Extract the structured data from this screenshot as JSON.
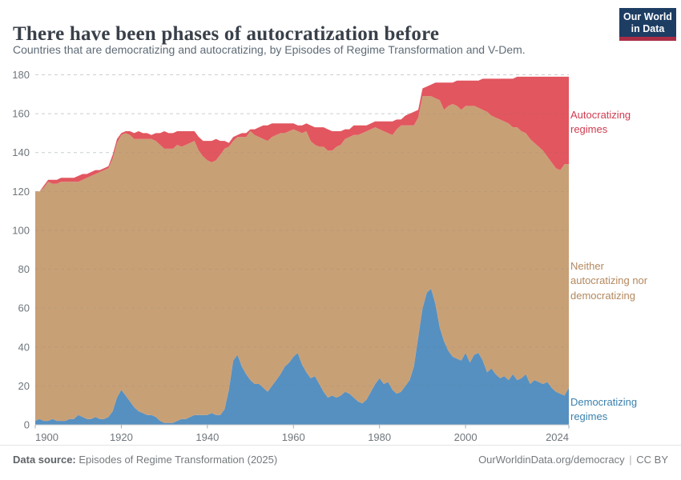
{
  "header": {
    "title": "There have been phases of autocratization before",
    "subtitle": "Countries that are democratizing and autocratizing, by Episodes of Regime Transformation and V-Dem.",
    "logo": {
      "line1": "Our World",
      "line2": "in Data",
      "bg_color": "#1d3d63",
      "bar_color": "#aa2d46"
    }
  },
  "chart_data": {
    "type": "area",
    "stacked": true,
    "title": "There have been phases of autocratization before",
    "xlabel": "",
    "ylabel": "",
    "ylim": [
      0,
      180
    ],
    "y_ticks": [
      0,
      20,
      40,
      60,
      80,
      100,
      120,
      140,
      160,
      180
    ],
    "x_ticks": [
      1900,
      1920,
      1940,
      1960,
      1980,
      2000,
      2024
    ],
    "grid": "horizontal-dashed",
    "legend_position": "right-edge-annotations",
    "years": {
      "start": 1900,
      "end": 2024,
      "step": 1
    },
    "series": [
      {
        "name": "Democratizing regimes",
        "color": "#5590c1",
        "values": [
          2,
          3,
          2,
          2,
          3,
          2,
          2,
          2,
          3,
          3,
          5,
          4,
          3,
          3,
          4,
          3,
          3,
          4,
          7,
          14,
          18,
          15,
          12,
          9,
          7,
          6,
          5,
          5,
          4,
          2,
          1,
          1,
          1,
          2,
          3,
          3,
          4,
          5,
          5,
          5,
          5,
          6,
          5,
          5,
          8,
          18,
          33,
          36,
          30,
          26,
          23,
          21,
          21,
          19,
          17,
          20,
          23,
          26,
          30,
          32,
          35,
          37,
          31,
          27,
          24,
          25,
          21,
          17,
          14,
          15,
          14,
          15,
          17,
          16,
          14,
          12,
          11,
          13,
          17,
          21,
          24,
          21,
          22,
          18,
          16,
          17,
          20,
          23,
          30,
          45,
          60,
          68,
          70,
          62,
          50,
          43,
          38,
          35,
          34,
          33,
          37,
          32,
          36,
          37,
          33,
          27,
          29,
          26,
          24,
          25,
          23,
          26,
          23,
          24,
          26,
          21,
          23,
          22,
          21,
          22,
          19,
          17,
          16,
          15,
          19
        ]
      },
      {
        "name": "Neither autocratizing nor democratizing",
        "color": "#c8a076",
        "values": [
          118,
          117,
          120,
          123,
          121,
          122,
          123,
          123,
          122,
          122,
          120,
          122,
          124,
          125,
          125,
          127,
          128,
          128,
          130,
          131,
          131,
          135,
          137,
          138,
          140,
          141,
          142,
          142,
          142,
          142,
          141,
          141,
          141,
          142,
          140,
          141,
          141,
          141,
          136,
          133,
          131,
          129,
          131,
          134,
          134,
          125,
          113,
          112,
          118,
          122,
          128,
          128,
          127,
          128,
          129,
          128,
          126,
          124,
          120,
          119,
          117,
          114,
          119,
          124,
          122,
          119,
          122,
          126,
          127,
          126,
          129,
          129,
          130,
          132,
          135,
          137,
          139,
          138,
          135,
          132,
          128,
          130,
          128,
          131,
          136,
          137,
          134,
          131,
          124,
          113,
          109,
          101,
          99,
          106,
          117,
          119,
          126,
          130,
          130,
          129,
          127,
          132,
          128,
          126,
          129,
          134,
          130,
          132,
          133,
          131,
          132,
          127,
          130,
          127,
          124,
          126,
          122,
          121,
          120,
          116,
          116,
          115,
          115,
          119,
          115
        ]
      },
      {
        "name": "Autocratizing regimes",
        "color": "#e2565f",
        "values": [
          0,
          0,
          1,
          1,
          2,
          2,
          2,
          2,
          2,
          2,
          3,
          3,
          2,
          2,
          2,
          1,
          1,
          1,
          2,
          2,
          1,
          1,
          2,
          3,
          4,
          3,
          3,
          2,
          4,
          6,
          9,
          8,
          8,
          7,
          8,
          7,
          6,
          5,
          7,
          8,
          10,
          11,
          11,
          7,
          4,
          2,
          2,
          1,
          2,
          2,
          1,
          3,
          5,
          7,
          8,
          7,
          6,
          5,
          5,
          4,
          3,
          3,
          4,
          4,
          8,
          9,
          10,
          10,
          11,
          10,
          8,
          7,
          5,
          4,
          5,
          5,
          4,
          3,
          3,
          3,
          4,
          5,
          6,
          7,
          5,
          3,
          5,
          6,
          7,
          4,
          4,
          5,
          6,
          8,
          9,
          14,
          12,
          11,
          13,
          15,
          13,
          13,
          13,
          14,
          16,
          17,
          19,
          20,
          21,
          22,
          23,
          25,
          26,
          28,
          29,
          32,
          34,
          36,
          38,
          41,
          44,
          47,
          48,
          45,
          45
        ]
      }
    ]
  },
  "legend": {
    "autocratizing": {
      "label": "Autocratizing regimes",
      "text_color": "#cf3b4f"
    },
    "neither": {
      "label": "Neither autocratizing nor democratizing",
      "text_color": "#b3885e"
    },
    "democratizing": {
      "label": "Democratizing regimes",
      "text_color": "#3a80ad"
    }
  },
  "footer": {
    "source_label": "Data source:",
    "source_value": " Episodes of Regime Transformation (2025)",
    "link": "OurWorldinData.org/democracy",
    "divider": "|",
    "license": "CC BY"
  }
}
